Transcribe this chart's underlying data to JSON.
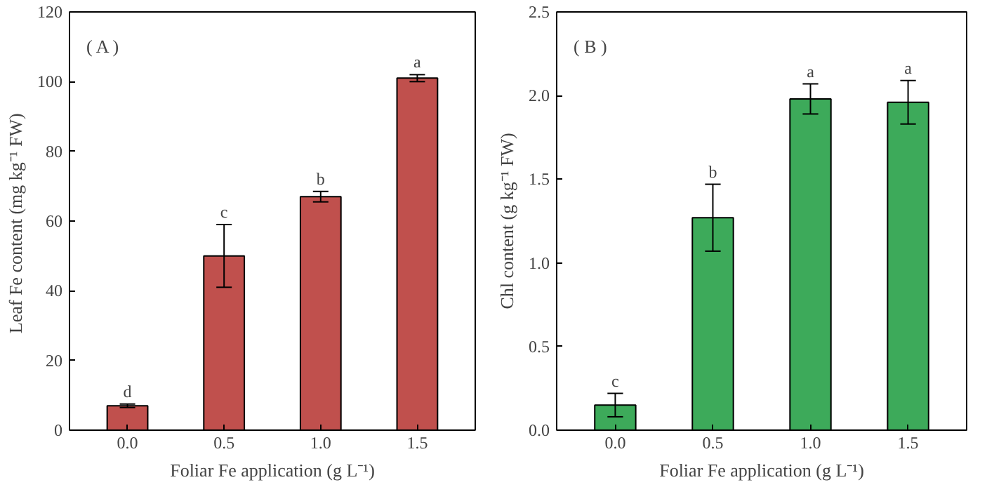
{
  "chart_data": [
    {
      "type": "bar",
      "categories": [
        "0.0",
        "0.5",
        "1.0",
        "1.5"
      ],
      "values": [
        7,
        50,
        67,
        101
      ],
      "errors": [
        0.5,
        9,
        1.5,
        1
      ],
      "color": "#c0504d",
      "ylim": [
        0,
        120
      ],
      "yticks": [
        0,
        20,
        40,
        60,
        80,
        100,
        120
      ],
      "xlabel": "Foliar Fe application (g L⁻¹)",
      "ylabel": "Leaf  Fe content (mg kg⁻¹ FW)",
      "grid": false,
      "annotations": [
        "( A )",
        {
          "text": "d",
          "x": "0.0",
          "y": 7.5
        },
        {
          "text": "c",
          "x": "0.5",
          "y": 59
        },
        {
          "text": "b",
          "x": "1.0",
          "y": 68.5
        },
        {
          "text": "a",
          "x": "1.5",
          "y": 102
        }
      ]
    },
    {
      "type": "bar",
      "categories": [
        "0.0",
        "0.5",
        "1.0",
        "1.5"
      ],
      "values": [
        0.15,
        1.27,
        1.98,
        1.96
      ],
      "errors": [
        0.07,
        0.2,
        0.09,
        0.13
      ],
      "color": "#3daa5a",
      "ylim": [
        0,
        2.5
      ],
      "yticks": [
        {
          "value": 0,
          "label": "0.0"
        },
        {
          "value": 0.5,
          "label": "0.5"
        },
        {
          "value": 1,
          "label": "1.0"
        },
        {
          "value": 1.5,
          "label": "1.5"
        },
        {
          "value": 2,
          "label": "2.0"
        },
        {
          "value": 2.5,
          "label": "2.5"
        }
      ],
      "xlabel": "Foliar Fe application (g L⁻¹)",
      "ylabel": "Chl content (g kg⁻¹ FW)",
      "grid": false,
      "annotations": [
        "( B )",
        {
          "text": "c",
          "x": "0.0",
          "y": 0.22
        },
        {
          "text": "b",
          "x": "0.5",
          "y": 1.47
        },
        {
          "text": "a",
          "x": "1.0",
          "y": 2.07
        },
        {
          "text": "a",
          "x": "1.5",
          "y": 2.09
        }
      ]
    }
  ]
}
